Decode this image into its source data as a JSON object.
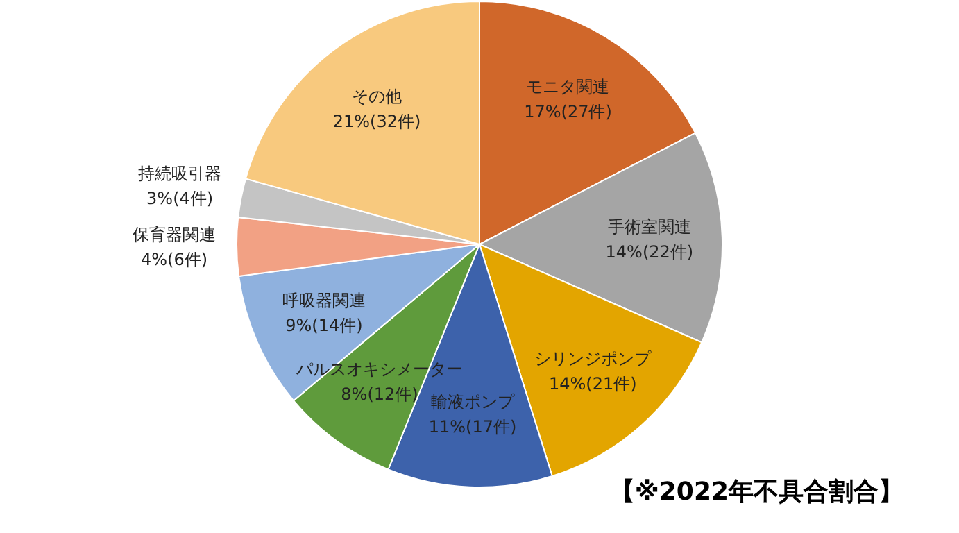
{
  "chart_data": {
    "type": "pie",
    "categories": [
      "モニタ関連",
      "手術室関連",
      "シリンジポンプ",
      "輸液ポンプ",
      "パルスオキシメーター",
      "呼吸器関連",
      "保育器関連",
      "持続吸引器",
      "その他"
    ],
    "values": [
      27,
      22,
      21,
      17,
      12,
      14,
      6,
      4,
      32
    ],
    "value_labels": [
      "17%(27件)",
      "14%(22件)",
      "14%(21件)",
      "11%(17件)",
      "8%(12件)",
      "9%(14件)",
      "4%(6件)",
      "3%(4件)",
      "21%(32件)"
    ],
    "colors": [
      "#d0672a",
      "#a5a5a5",
      "#e3a500",
      "#3d62ab",
      "#5f9b3c",
      "#8fb1de",
      "#f2a184",
      "#c4c4c4",
      "#f8c97e"
    ],
    "annotations": [
      "【※2022年不具合割合】"
    ],
    "legend": false
  }
}
